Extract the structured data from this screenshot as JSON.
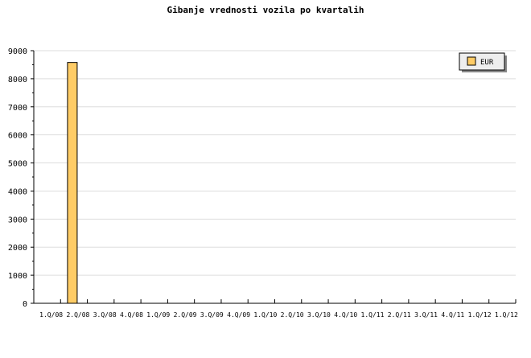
{
  "chart_data": {
    "type": "bar",
    "title": "Gibanje vrednosti vozila po kvartalih",
    "xlabel": "",
    "ylabel": "",
    "categories": [
      "1.Q/08",
      "2.Q/08",
      "3.Q/08",
      "4.Q/08",
      "1.Q/09",
      "2.Q/09",
      "3.Q/09",
      "4.Q/09",
      "1.Q/10",
      "2.Q/10",
      "3.Q/10",
      "4.Q/10",
      "1.Q/11",
      "2.Q/11",
      "3.Q/11",
      "4.Q/11",
      "1.Q/12",
      "1.Q/12"
    ],
    "series": [
      {
        "name": "EUR",
        "color": "#ffcc66",
        "values": [
          null,
          8580,
          null,
          null,
          null,
          null,
          null,
          null,
          null,
          null,
          null,
          null,
          null,
          null,
          null,
          null,
          null,
          null
        ]
      }
    ],
    "ylim": [
      0,
      9000
    ],
    "yticks": [
      0,
      1000,
      2000,
      3000,
      4000,
      5000,
      6000,
      7000,
      8000,
      9000
    ],
    "grid": true,
    "legend": "top-right"
  }
}
